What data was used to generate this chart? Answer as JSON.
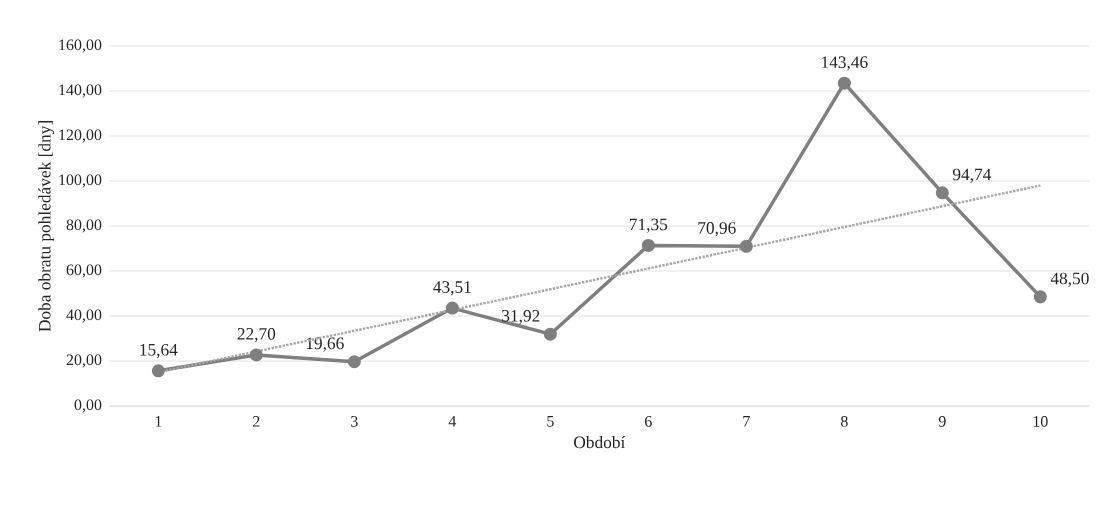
{
  "chart_data": {
    "type": "line",
    "xlabel": "Období",
    "ylabel": "Doba obratu pohledávek [dny]",
    "x": [
      1,
      2,
      3,
      4,
      5,
      6,
      7,
      8,
      9,
      10
    ],
    "xlim": [
      0.5,
      10.5
    ],
    "xticks": [
      1,
      2,
      3,
      4,
      5,
      6,
      7,
      8,
      9,
      10
    ],
    "ylim": [
      0,
      160
    ],
    "yticks": [
      {
        "value": 0,
        "label": "0,00"
      },
      {
        "value": 20,
        "label": "20,00"
      },
      {
        "value": 40,
        "label": "40,00"
      },
      {
        "value": 60,
        "label": "60,00"
      },
      {
        "value": 80,
        "label": "80,00"
      },
      {
        "value": 100,
        "label": "100,00"
      },
      {
        "value": 120,
        "label": "120,00"
      },
      {
        "value": 140,
        "label": "140,00"
      },
      {
        "value": 160,
        "label": "160,00"
      }
    ],
    "grid": "y",
    "series": [
      {
        "color": "#7f7f7f",
        "marker": "circle",
        "line_style": "solid",
        "values": [
          15.64,
          22.7,
          19.66,
          43.51,
          31.92,
          71.35,
          70.96,
          143.46,
          94.74,
          48.5
        ],
        "value_labels": [
          "15,64",
          "22,70",
          "19,66",
          "43,51",
          "31,92",
          "71,35",
          "70,96",
          "143,46",
          "94,74",
          "48,50"
        ]
      },
      {
        "type": "line",
        "color": "#a6a6a6",
        "marker": "none",
        "line_style": "dotted",
        "x": [
          1,
          10
        ],
        "values": [
          15,
          98
        ]
      }
    ]
  }
}
